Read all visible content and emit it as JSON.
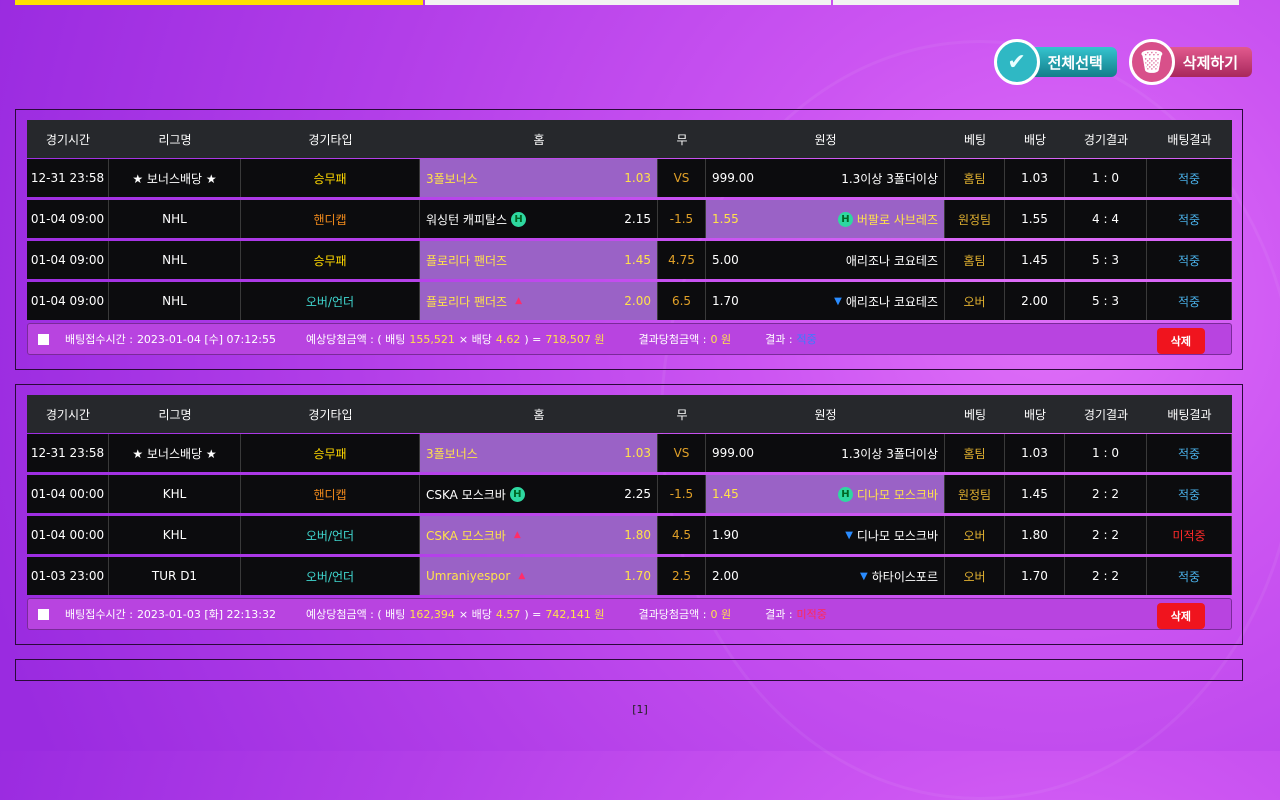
{
  "colors": {
    "yellow": "#ffd800",
    "orange": "#f08a1c",
    "teal": "#40d8d0",
    "draw": "#e0a028",
    "bet": "#e0b030",
    "hit": "#4ab0e8",
    "miss": "#ff2a2a"
  },
  "actions": {
    "select_all": "전체선택",
    "delete": "삭제하기"
  },
  "headers": [
    "경기시간",
    "리그명",
    "경기타입",
    "홈",
    "무",
    "원정",
    "베팅",
    "배당",
    "경기결과",
    "배팅결과"
  ],
  "slips": [
    {
      "rows": [
        {
          "time": "12-31 23:58",
          "league": "★ 보너스배당 ★",
          "type": "승무패",
          "type_color": "yellow",
          "home": "3폴보너스",
          "home_odds": "1.03",
          "draw": "VS",
          "away_odds": "999.00",
          "away": "1.3이상 3폴더이상",
          "bet": "홈팀",
          "odds": "1.03",
          "score": "1 : 0",
          "result": "적중",
          "result_status": "hit",
          "pick": "home",
          "marker": ""
        },
        {
          "time": "01-04 09:00",
          "league": "NHL",
          "type": "핸디캡",
          "type_color": "orange",
          "home": "워싱턴 캐피탈스",
          "home_odds": "2.15",
          "draw": "-1.5",
          "away_odds": "1.55",
          "away": "버팔로 사브레즈",
          "bet": "원정팀",
          "odds": "1.55",
          "score": "4 : 4",
          "result": "적중",
          "result_status": "hit",
          "pick": "away",
          "marker": "handicap"
        },
        {
          "time": "01-04 09:00",
          "league": "NHL",
          "type": "승무패",
          "type_color": "yellow",
          "home": "플로리다 팬더즈",
          "home_odds": "1.45",
          "draw": "4.75",
          "away_odds": "5.00",
          "away": "애리조나 코요테즈",
          "bet": "홈팀",
          "odds": "1.45",
          "score": "5 : 3",
          "result": "적중",
          "result_status": "hit",
          "pick": "home",
          "marker": ""
        },
        {
          "time": "01-04 09:00",
          "league": "NHL",
          "type": "오버/언더",
          "type_color": "teal",
          "home": "플로리다 팬더즈",
          "home_odds": "2.00",
          "draw": "6.5",
          "away_odds": "1.70",
          "away": "애리조나 코요테즈",
          "bet": "오버",
          "odds": "2.00",
          "score": "5 : 3",
          "result": "적중",
          "result_status": "hit",
          "pick": "home",
          "marker": "overunder"
        }
      ],
      "footer": {
        "time_label": "배팅접수시간 :",
        "time": "2023-01-04 [수] 07:12:55",
        "expected_label": "예상당첨금액 : ( 배팅",
        "stake": "155,521",
        "times": "× 배당",
        "total_odds": "4.62",
        "eq": ") =",
        "expected": "718,507 원",
        "win_label": "결과당첨금액 :",
        "win": "0 원",
        "result_label": "결과 :",
        "result": "적중",
        "result_status": "hit",
        "delete": "삭제"
      }
    },
    {
      "rows": [
        {
          "time": "12-31 23:58",
          "league": "★ 보너스배당 ★",
          "type": "승무패",
          "type_color": "yellow",
          "home": "3폴보너스",
          "home_odds": "1.03",
          "draw": "VS",
          "away_odds": "999.00",
          "away": "1.3이상 3폴더이상",
          "bet": "홈팀",
          "odds": "1.03",
          "score": "1 : 0",
          "result": "적중",
          "result_status": "hit",
          "pick": "home",
          "marker": ""
        },
        {
          "time": "01-04 00:00",
          "league": "KHL",
          "type": "핸디캡",
          "type_color": "orange",
          "home": "CSKA 모스크바",
          "home_odds": "2.25",
          "draw": "-1.5",
          "away_odds": "1.45",
          "away": "디나모 모스크바",
          "bet": "원정팀",
          "odds": "1.45",
          "score": "2 : 2",
          "result": "적중",
          "result_status": "hit",
          "pick": "away",
          "marker": "handicap"
        },
        {
          "time": "01-04 00:00",
          "league": "KHL",
          "type": "오버/언더",
          "type_color": "teal",
          "home": "CSKA 모스크바",
          "home_odds": "1.80",
          "draw": "4.5",
          "away_odds": "1.90",
          "away": "디나모 모스크바",
          "bet": "오버",
          "odds": "1.80",
          "score": "2 : 2",
          "result": "미적중",
          "result_status": "miss",
          "pick": "home",
          "marker": "overunder"
        },
        {
          "time": "01-03 23:00",
          "league": "TUR D1",
          "type": "오버/언더",
          "type_color": "teal",
          "home": "Umraniyespor",
          "home_odds": "1.70",
          "draw": "2.5",
          "away_odds": "2.00",
          "away": "하타이스포르",
          "bet": "오버",
          "odds": "1.70",
          "score": "2 : 2",
          "result": "적중",
          "result_status": "hit",
          "pick": "home",
          "marker": "overunder"
        }
      ],
      "footer": {
        "time_label": "배팅접수시간 :",
        "time": "2023-01-03 [화] 22:13:32",
        "expected_label": "예상당첨금액 : ( 배팅",
        "stake": "162,394",
        "times": "× 배당",
        "total_odds": "4.57",
        "eq": ") =",
        "expected": "742,141 원",
        "win_label": "결과당첨금액 :",
        "win": "0 원",
        "result_label": "결과 :",
        "result": "미적중",
        "result_status": "miss",
        "delete": "삭제"
      }
    }
  ],
  "pagination": "[1]"
}
